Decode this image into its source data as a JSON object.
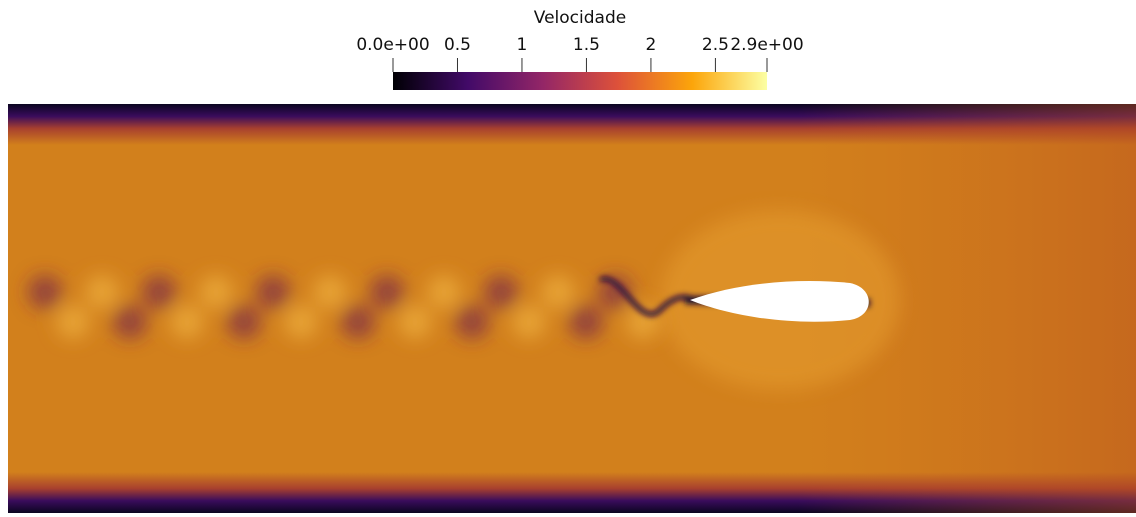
{
  "colorbar": {
    "title": "Velocidade",
    "range": [
      0,
      2.9
    ],
    "ticks": [
      {
        "value": 0,
        "label": "0.0e+00"
      },
      0.5,
      1,
      1.5,
      2,
      2.5,
      {
        "value": 2.9,
        "label": "2.9e+00"
      }
    ],
    "colormap": [
      "#000004",
      "#420a68",
      "#932667",
      "#dd513a",
      "#fca50a",
      "#fcffa4"
    ]
  }
}
